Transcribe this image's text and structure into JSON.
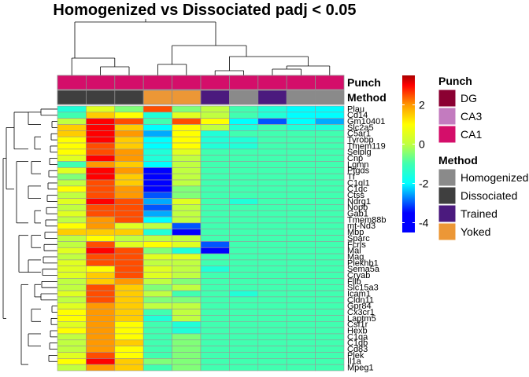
{
  "chart_data": {
    "type": "heatmap",
    "title": "Homogenized vs Dissociated padj < 0.05",
    "annotation_labels": [
      "Punch",
      "Method"
    ],
    "rows": [
      "Plau",
      "Cd14",
      "Gm10401",
      "Slc2a5",
      "C5ar1",
      "Tyrobp",
      "Tmem119",
      "Selplg",
      "Cnp",
      "Lgmn",
      "Ptgds",
      "Tf",
      "C1ql1",
      "C1qc",
      "Ctss",
      "Ndrg1",
      "Nopb",
      "Gab1",
      "Tmem88b",
      "mt-Nd3",
      "Mbp",
      "Sparc",
      "Fcrls",
      "Mal",
      "Mag",
      "Plekhb1",
      "Sema5a",
      "Cryab",
      "Fllb",
      "Slc15a3",
      "Icam1",
      "Cldn11",
      "Gpr84",
      "Cx3cr1",
      "Laptm5",
      "Csf1r",
      "Hexb",
      "C1qa",
      "C1qb",
      "Cd83",
      "Plek",
      "Il1a",
      "Mpeg1"
    ],
    "columns": [
      {
        "punch": "CA1",
        "method": "Dissociated"
      },
      {
        "punch": "CA1",
        "method": "Dissociated"
      },
      {
        "punch": "CA1",
        "method": "Dissociated"
      },
      {
        "punch": "CA1",
        "method": "Yoked"
      },
      {
        "punch": "CA1",
        "method": "Yoked"
      },
      {
        "punch": "CA1",
        "method": "Trained"
      },
      {
        "punch": "CA1",
        "method": "Homogenized"
      },
      {
        "punch": "CA1",
        "method": "Trained"
      },
      {
        "punch": "CA1",
        "method": "Homogenized"
      },
      {
        "punch": "CA1",
        "method": "Homogenized"
      }
    ],
    "values": [
      [
        -1.5,
        0.5,
        -0.5,
        2.5,
        -0.5,
        0,
        -1,
        -1.5,
        -2,
        -2
      ],
      [
        -1,
        1.5,
        1,
        -1.5,
        0.5,
        0,
        -1,
        -1.5,
        -2,
        -2
      ],
      [
        0,
        3,
        2.5,
        -1,
        2.5,
        1,
        -2,
        -3,
        -2,
        -2.5
      ],
      [
        1.5,
        3,
        1.5,
        -2,
        1,
        0,
        -1.5,
        -1,
        -1.5,
        -1.5
      ],
      [
        1.5,
        3,
        2,
        -2.5,
        1,
        -1.5,
        -1,
        -1,
        -1,
        -1
      ],
      [
        1,
        3,
        1.5,
        -2,
        1,
        -1.5,
        -1.5,
        -1,
        -1,
        -1
      ],
      [
        1,
        2.5,
        1.5,
        -2,
        1,
        -1.5,
        -1.5,
        -1,
        -1,
        -1
      ],
      [
        1,
        2.5,
        2,
        -1.5,
        0.5,
        -1,
        -1,
        -1,
        -1,
        -1
      ],
      [
        0.5,
        3,
        2,
        -1.5,
        0,
        -1,
        -1,
        -1,
        -1,
        -1
      ],
      [
        -1,
        2,
        1.5,
        -2,
        0,
        -1,
        -1,
        -1,
        -1,
        -1
      ],
      [
        0.5,
        3,
        2,
        -4,
        0,
        -1,
        -1,
        -1,
        -1,
        -1
      ],
      [
        -0.5,
        3,
        1.5,
        -4,
        0,
        -1,
        -1,
        -1,
        -1,
        -1
      ],
      [
        0,
        2.5,
        1.5,
        -4,
        0,
        -1,
        -1,
        -1,
        -1,
        -1
      ],
      [
        1,
        2.5,
        2,
        -4,
        -0.5,
        -1,
        -1,
        -1,
        -1,
        -1
      ],
      [
        0,
        2.5,
        2,
        -3,
        -0.5,
        -1,
        -1,
        -1,
        -1,
        -1
      ],
      [
        0.5,
        3,
        2.5,
        -2.5,
        0.5,
        -1,
        -1.5,
        -1,
        -1,
        -1
      ],
      [
        0,
        2.5,
        2.5,
        -3,
        0,
        -1,
        -1,
        -1,
        -1,
        -1
      ],
      [
        0.5,
        2.5,
        2.5,
        -2.5,
        0,
        -1,
        -1,
        -1,
        -1,
        -1
      ],
      [
        0,
        2,
        2.5,
        -2,
        0,
        -1,
        -1,
        -1,
        -1,
        -1
      ],
      [
        1,
        2,
        0.5,
        0,
        -3,
        -1,
        -1,
        -1,
        -1,
        -1
      ],
      [
        1.5,
        1.5,
        1.5,
        -1.5,
        -4,
        -1,
        -1,
        -1,
        -1,
        -1
      ],
      [
        0,
        1,
        0,
        0,
        0,
        -1,
        -1,
        -1,
        -1,
        -1
      ],
      [
        0,
        2.5,
        0.5,
        1,
        0.5,
        -3,
        -1,
        -1,
        -1,
        -1
      ],
      [
        0.5,
        3,
        2.5,
        -0.5,
        -1.5,
        -4,
        -1,
        -1,
        -1,
        -1
      ],
      [
        0,
        2.5,
        2.5,
        0.5,
        0.5,
        -1,
        -1,
        -1,
        -1,
        -1
      ],
      [
        0.5,
        2.5,
        2.5,
        0,
        0,
        -1,
        -1,
        -1,
        -1,
        -1
      ],
      [
        0.5,
        1,
        2.5,
        0.5,
        0,
        -1.5,
        -1,
        -1,
        -1,
        -1
      ],
      [
        0.5,
        1.5,
        2.5,
        0.5,
        0,
        -1,
        -1,
        -1,
        -1,
        -1
      ],
      [
        0,
        1.5,
        2,
        0,
        -0.5,
        -1,
        -1,
        -1,
        -1,
        -1
      ],
      [
        0,
        2.5,
        1.5,
        -0.5,
        0,
        -1,
        -1,
        -1,
        -1,
        -1
      ],
      [
        0.5,
        2.5,
        1.5,
        0,
        -1,
        -1,
        -1.5,
        -1,
        -1,
        -1
      ],
      [
        0,
        2.5,
        1.5,
        -0.5,
        -0.5,
        -1,
        -1,
        -1,
        -1,
        -1
      ],
      [
        0.5,
        2,
        1.5,
        0,
        0,
        -1,
        -1,
        -1,
        -1,
        -1
      ],
      [
        1,
        2,
        1.5,
        -1,
        0,
        -1,
        -1,
        -1,
        -1,
        -1
      ],
      [
        1,
        2,
        1.5,
        -1.5,
        0,
        -1,
        -1,
        -1,
        -1,
        -1
      ],
      [
        0.5,
        2,
        1,
        -1,
        -1.5,
        -1,
        -1,
        -1,
        -1,
        -1
      ],
      [
        1,
        2,
        1,
        -1,
        -1.5,
        -1,
        -1,
        -1,
        -1,
        -1
      ],
      [
        0,
        2,
        1,
        -1,
        -0.5,
        -1,
        -1,
        -1,
        -1,
        -1
      ],
      [
        0,
        2,
        1.5,
        -1,
        -0.5,
        -1,
        -1,
        -1,
        -1,
        -1
      ],
      [
        0,
        2,
        1,
        -1,
        -0.5,
        -1,
        -1,
        -1,
        -1,
        -1
      ],
      [
        0.5,
        2.5,
        1,
        -1,
        -0.5,
        -1,
        -1,
        -1,
        -1,
        -1
      ],
      [
        1,
        3,
        1.5,
        -0.5,
        -0.5,
        -1,
        -1,
        -1,
        -1,
        -1
      ],
      [
        0,
        2,
        1.5,
        -1,
        -0.5,
        -1,
        -1,
        -1,
        -1,
        -1
      ]
    ],
    "color_scale": {
      "min": -4.5,
      "max": 3.5,
      "stops": [
        {
          "v": -4.5,
          "c": "#0000ff"
        },
        {
          "v": -3.5,
          "c": "#0000ff"
        },
        {
          "v": -2.0,
          "c": "#00ffff"
        },
        {
          "v": -1.0,
          "c": "#40ffb0"
        },
        {
          "v": 0.0,
          "c": "#c0ff40"
        },
        {
          "v": 1.0,
          "c": "#ffff00"
        },
        {
          "v": 2.0,
          "c": "#ff9900"
        },
        {
          "v": 3.0,
          "c": "#ff0000"
        },
        {
          "v": 3.5,
          "c": "#aa0000"
        }
      ],
      "ticks": [
        2,
        0,
        -2,
        -4
      ]
    },
    "legend_punch": {
      "title": "Punch",
      "items": [
        {
          "label": "DG",
          "color": "#8b0032"
        },
        {
          "label": "CA3",
          "color": "#c37bbf"
        },
        {
          "label": "CA1",
          "color": "#d40e6a"
        }
      ]
    },
    "legend_method": {
      "title": "Method",
      "items": [
        {
          "label": "Homogenized",
          "color": "#8a8a8a"
        },
        {
          "label": "Dissociated",
          "color": "#3f3f3f"
        },
        {
          "label": "Trained",
          "color": "#4b1a7e"
        },
        {
          "label": "Yoked",
          "color": "#ec9736"
        }
      ]
    }
  }
}
